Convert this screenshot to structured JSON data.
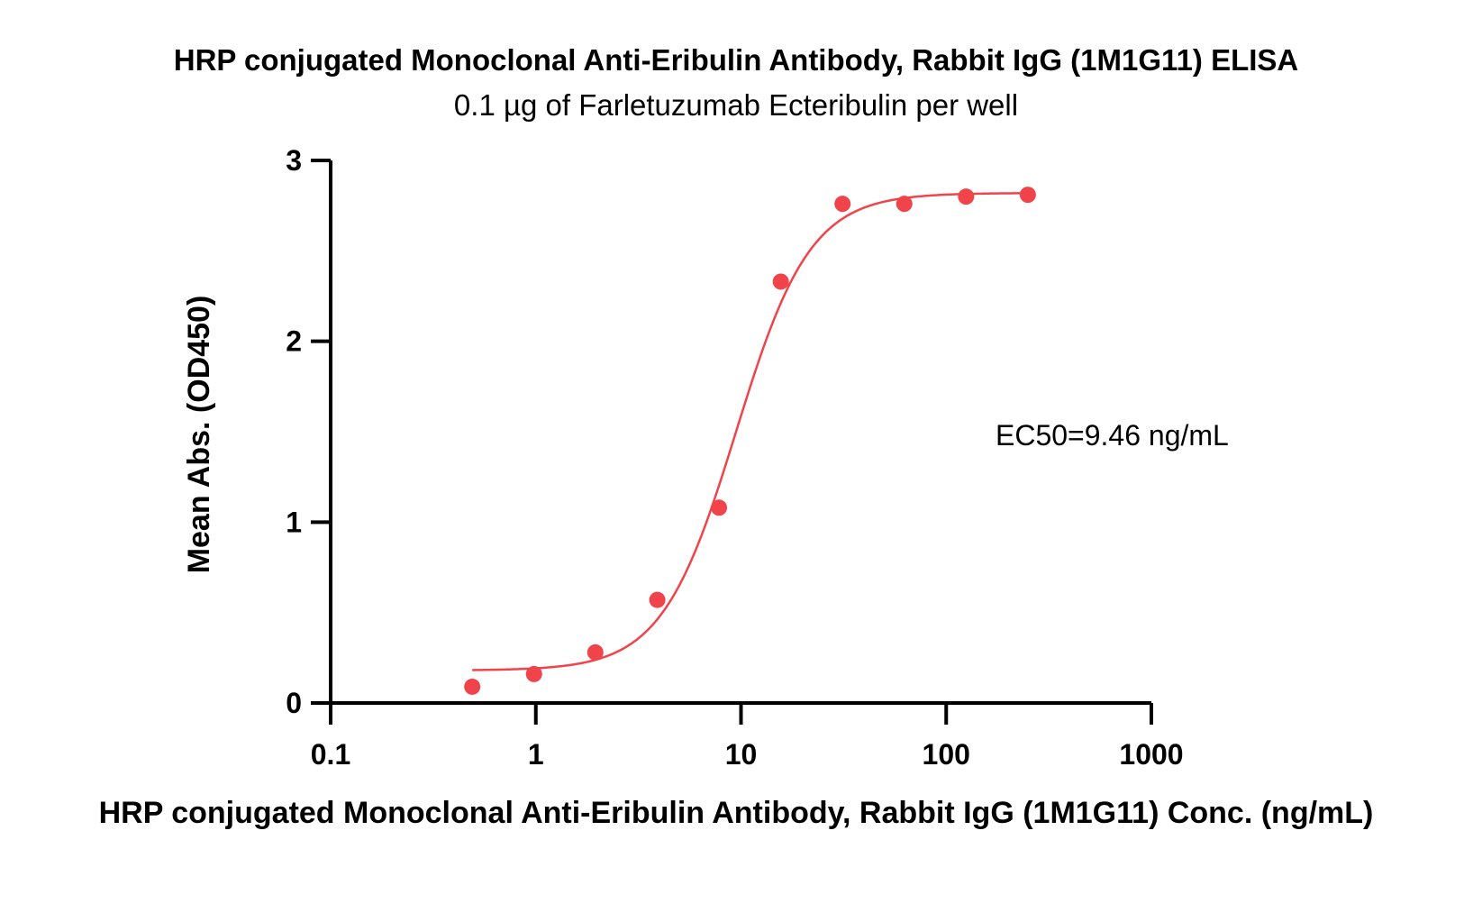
{
  "chart_data": {
    "type": "scatter",
    "title": "HRP conjugated Monoclonal Anti-Eribulin Antibody, Rabbit IgG (1M1G11) ELISA",
    "subtitle": "0.1 µg of Farletuzumab Ecteribulin per well",
    "xlabel": "HRP conjugated Monoclonal Anti-Eribulin Antibody, Rabbit IgG (1M1G11) Conc. (ng/mL)",
    "ylabel": "Mean Abs. (OD450)",
    "x_scale": "log",
    "xlim": [
      0.1,
      1000
    ],
    "ylim": [
      0,
      3
    ],
    "x_ticks": [
      "0.1",
      "1",
      "10",
      "100",
      "1000"
    ],
    "y_ticks": [
      "0",
      "1",
      "2",
      "3"
    ],
    "grid": false,
    "annotation": "EC50=9.46 ng/mL",
    "color": "#f0444a",
    "series": [
      {
        "x": [
          0.49,
          0.98,
          1.95,
          3.91,
          7.81,
          15.63,
          31.25,
          62.5,
          125,
          250
        ],
        "y": [
          0.09,
          0.16,
          0.28,
          0.57,
          1.08,
          2.33,
          2.76,
          2.76,
          2.8,
          2.81
        ]
      }
    ],
    "fit_curve": {
      "model": "4PL",
      "bottom": 0.18,
      "top": 2.82,
      "ec50": 9.46,
      "hill": 2.4,
      "x_range": [
        0.49,
        250
      ]
    }
  }
}
